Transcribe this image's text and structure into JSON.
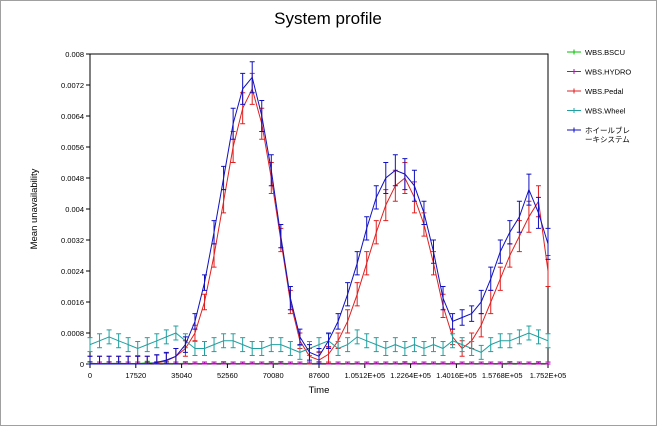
{
  "chart_data": {
    "type": "line",
    "title": "System profile",
    "xlabel": "Time",
    "ylabel": "Mean unavailability",
    "xlim": [
      0,
      175200
    ],
    "ylim": [
      0,
      0.008
    ],
    "xticks": [
      0,
      17520,
      35040,
      52560,
      70080,
      87600,
      105120,
      122640,
      140160,
      157680,
      175200
    ],
    "xtick_labels": [
      "0",
      "17520",
      "35040",
      "52560",
      "70080",
      "87600",
      "1.0512E+05",
      "1.2264E+05",
      "1.4016E+05",
      "1.5768E+05",
      "1.752E+05"
    ],
    "yticks": [
      0,
      0.0008,
      0.0016,
      0.0024,
      0.0032,
      0.004,
      0.0048,
      0.0056,
      0.0064,
      0.0072,
      0.008
    ],
    "ytick_labels": [
      "0",
      "0.0008",
      "0.0016",
      "0.0024",
      "0.0032",
      "0.004",
      "0.0048",
      "0.0056",
      "0.0064",
      "0.0072",
      "0.008"
    ],
    "grid": false,
    "legend_position": "right",
    "x": [
      0,
      3650,
      7300,
      10950,
      14600,
      18250,
      21900,
      25550,
      29200,
      32850,
      36500,
      40150,
      43800,
      47450,
      51100,
      54750,
      58400,
      62050,
      65700,
      69350,
      73000,
      76650,
      80300,
      83950,
      87600,
      91250,
      94900,
      98550,
      102200,
      105850,
      109500,
      113150,
      116800,
      120450,
      124100,
      127750,
      131400,
      135050,
      138700,
      142350,
      146000,
      149650,
      153300,
      156950,
      160600,
      164250,
      167900,
      171550,
      175200
    ],
    "series": [
      {
        "name": "WBS.BSCU",
        "color": "#00c000",
        "values": [
          1e-05,
          1e-05,
          2e-05,
          1e-05,
          1e-05,
          1e-05,
          3e-05,
          2e-05,
          1e-05,
          1e-05,
          2e-05,
          1e-05,
          1e-05,
          1e-05,
          2e-05,
          1e-05,
          1e-05,
          1e-05,
          1e-05,
          2e-05,
          1e-05,
          1e-05,
          1e-05,
          1e-05,
          2e-05,
          1e-05,
          1e-05,
          1e-05,
          1e-05,
          1e-05,
          1e-05,
          1e-05,
          1e-05,
          2e-05,
          1e-05,
          1e-05,
          1e-05,
          1e-05,
          1e-05,
          1e-05,
          1e-05,
          1e-05,
          1e-05,
          1e-05,
          1e-05,
          1e-05,
          1e-05,
          2e-05,
          1e-05
        ],
        "error": [
          4e-05,
          4e-05,
          4e-05,
          4e-05,
          4e-05,
          4e-05,
          4e-05,
          4e-05,
          4e-05,
          4e-05,
          4e-05,
          4e-05,
          4e-05,
          4e-05,
          4e-05,
          4e-05,
          4e-05,
          4e-05,
          4e-05,
          4e-05,
          4e-05,
          4e-05,
          4e-05,
          4e-05,
          4e-05,
          4e-05,
          4e-05,
          4e-05,
          4e-05,
          4e-05,
          4e-05,
          4e-05,
          4e-05,
          4e-05,
          4e-05,
          4e-05,
          4e-05,
          4e-05,
          4e-05,
          4e-05,
          4e-05,
          4e-05,
          4e-05,
          4e-05,
          4e-05,
          4e-05,
          4e-05,
          4e-05,
          4e-05
        ]
      },
      {
        "name": "WBS.HYDRO",
        "color": "#c000c0",
        "values": [
          2e-05,
          1e-05,
          1e-05,
          2e-05,
          1e-05,
          1e-05,
          1e-05,
          1e-05,
          2e-05,
          1e-05,
          1e-05,
          1e-05,
          1e-05,
          1e-05,
          1e-05,
          1e-05,
          1e-05,
          1e-05,
          1e-05,
          1e-05,
          2e-05,
          1e-05,
          1e-05,
          1e-05,
          1e-05,
          1e-05,
          1e-05,
          1e-05,
          1e-05,
          1e-05,
          1e-05,
          1e-05,
          1e-05,
          1e-05,
          1e-05,
          1e-05,
          1e-05,
          1e-05,
          1e-05,
          1e-05,
          1e-05,
          1e-05,
          1e-05,
          1e-05,
          2e-05,
          1e-05,
          1e-05,
          1e-05,
          1e-05
        ],
        "error": [
          4e-05,
          4e-05,
          4e-05,
          4e-05,
          4e-05,
          4e-05,
          4e-05,
          4e-05,
          4e-05,
          4e-05,
          4e-05,
          4e-05,
          4e-05,
          4e-05,
          4e-05,
          4e-05,
          4e-05,
          4e-05,
          4e-05,
          4e-05,
          4e-05,
          4e-05,
          4e-05,
          4e-05,
          4e-05,
          4e-05,
          4e-05,
          4e-05,
          4e-05,
          4e-05,
          4e-05,
          4e-05,
          4e-05,
          4e-05,
          4e-05,
          4e-05,
          4e-05,
          4e-05,
          4e-05,
          4e-05,
          4e-05,
          4e-05,
          4e-05,
          4e-05,
          4e-05,
          4e-05,
          4e-05,
          4e-05,
          4e-05
        ]
      },
      {
        "name": "WBS.Pedal",
        "color": "#e02020",
        "values": [
          0,
          0,
          0,
          0,
          0,
          0,
          0,
          3e-05,
          8e-05,
          0.0002,
          0.0004,
          0.0008,
          0.0016,
          0.0028,
          0.0042,
          0.0056,
          0.0066,
          0.0071,
          0.0062,
          0.0048,
          0.0032,
          0.0016,
          0.0006,
          0.0002,
          0.0001,
          0.00025,
          0.0006,
          0.0011,
          0.0018,
          0.0026,
          0.0034,
          0.0041,
          0.0046,
          0.0048,
          0.0043,
          0.0036,
          0.0026,
          0.0015,
          0.0007,
          0.0004,
          0.0006,
          0.001,
          0.0016,
          0.0022,
          0.0028,
          0.0033,
          0.0038,
          0.0042,
          0.0024
        ],
        "error": [
          0.0002,
          0.0002,
          0.0002,
          0.0002,
          0.0002,
          0.0002,
          0.0002,
          0.0002,
          0.0002,
          0.0002,
          0.0002,
          0.0002,
          0.0002,
          0.0003,
          0.0003,
          0.0004,
          0.0004,
          0.0004,
          0.0004,
          0.0004,
          0.0003,
          0.0003,
          0.0002,
          0.0002,
          0.0002,
          0.0002,
          0.0002,
          0.0003,
          0.0003,
          0.0003,
          0.0003,
          0.0004,
          0.0004,
          0.0004,
          0.0004,
          0.0003,
          0.0003,
          0.0003,
          0.0002,
          0.0002,
          0.0002,
          0.0003,
          0.0003,
          0.0003,
          0.0003,
          0.0004,
          0.0004,
          0.0004,
          0.0004
        ]
      },
      {
        "name": "WBS.Wheel",
        "color": "#20a0a0",
        "values": [
          0.0005,
          0.0006,
          0.0007,
          0.0006,
          0.0005,
          0.0004,
          0.0005,
          0.0006,
          0.0007,
          0.0008,
          0.0006,
          0.0004,
          0.0004,
          0.0005,
          0.0006,
          0.0006,
          0.0005,
          0.0004,
          0.0004,
          0.0005,
          0.0005,
          0.0004,
          0.0003,
          0.0004,
          0.0005,
          0.0006,
          0.0004,
          0.0005,
          0.0007,
          0.0006,
          0.0005,
          0.0004,
          0.0005,
          0.0004,
          0.0005,
          0.0004,
          0.0005,
          0.0004,
          0.0006,
          0.0005,
          0.0004,
          0.0003,
          0.0005,
          0.0006,
          0.0006,
          0.0007,
          0.0008,
          0.0007,
          0.0006
        ],
        "error": [
          0.00018,
          0.00018,
          0.00018,
          0.00018,
          0.00018,
          0.00018,
          0.00018,
          0.00018,
          0.00018,
          0.00018,
          0.00018,
          0.00018,
          0.00018,
          0.00018,
          0.00018,
          0.00018,
          0.00018,
          0.00018,
          0.00018,
          0.00018,
          0.00018,
          0.00018,
          0.00018,
          0.00018,
          0.00018,
          0.00018,
          0.00018,
          0.00018,
          0.00018,
          0.00018,
          0.00018,
          0.00018,
          0.00018,
          0.00018,
          0.00018,
          0.00018,
          0.00018,
          0.00018,
          0.00018,
          0.00018,
          0.00018,
          0.00018,
          0.00018,
          0.00018,
          0.00018,
          0.00018,
          0.00018,
          0.00018,
          0.00018
        ]
      },
      {
        "name": "ホイールブレーキシステム",
        "color": "#1010c0",
        "values": [
          0,
          0,
          0,
          0,
          0,
          0,
          0,
          4e-05,
          0.0001,
          0.0002,
          0.0005,
          0.0011,
          0.0021,
          0.0034,
          0.0048,
          0.0062,
          0.0071,
          0.0074,
          0.0064,
          0.005,
          0.0033,
          0.0017,
          0.0007,
          0.0003,
          0.0002,
          0.0006,
          0.0011,
          0.0018,
          0.0026,
          0.0035,
          0.0043,
          0.0048,
          0.005,
          0.0049,
          0.0046,
          0.0039,
          0.0029,
          0.0017,
          0.0011,
          0.0012,
          0.0013,
          0.0016,
          0.0022,
          0.0029,
          0.0034,
          0.0038,
          0.0045,
          0.0039,
          0.0031
        ],
        "error": [
          0.0002,
          0.0002,
          0.0002,
          0.0002,
          0.0002,
          0.0002,
          0.0002,
          0.0002,
          0.0002,
          0.0002,
          0.0002,
          0.0002,
          0.0002,
          0.0003,
          0.0003,
          0.0004,
          0.0004,
          0.0004,
          0.0004,
          0.0004,
          0.0003,
          0.0003,
          0.0002,
          0.0002,
          0.0002,
          0.0002,
          0.0002,
          0.0003,
          0.0003,
          0.0003,
          0.0003,
          0.0004,
          0.0004,
          0.0004,
          0.0004,
          0.0003,
          0.0003,
          0.0003,
          0.0002,
          0.0002,
          0.0002,
          0.0003,
          0.0003,
          0.0003,
          0.0003,
          0.0004,
          0.0004,
          0.0004,
          0.0004
        ]
      }
    ]
  }
}
